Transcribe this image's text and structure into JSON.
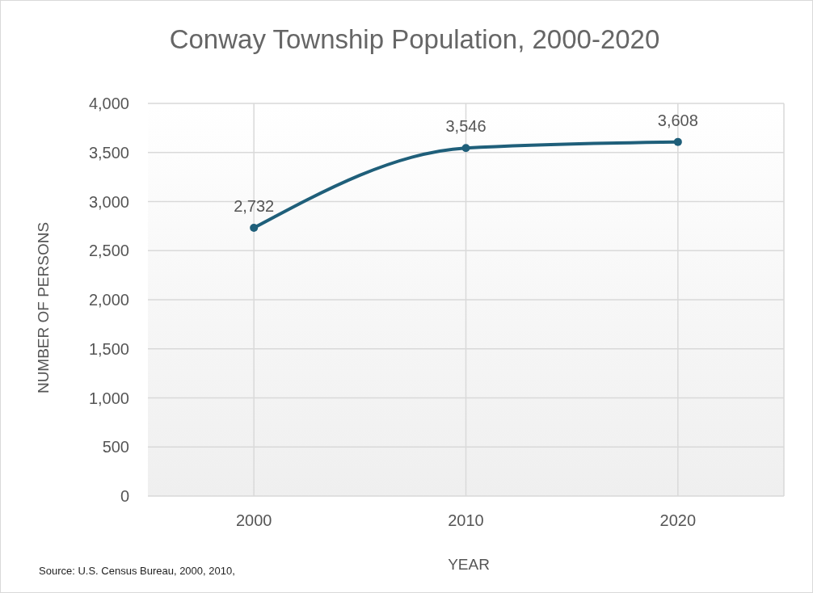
{
  "chart_data": {
    "type": "line",
    "title": "Conway Township Population, 2000-2020",
    "xlabel": "YEAR",
    "ylabel": "NUMBER OF PERSONS",
    "categories": [
      "2000",
      "2010",
      "2020"
    ],
    "series": [
      {
        "color": "#1f5f7a",
        "values": [
          2732,
          3546,
          3608
        ],
        "value_labels": [
          "2,732",
          "3,546",
          "3,608"
        ]
      }
    ],
    "ylim": [
      0,
      4000
    ],
    "yticks": [
      0,
      500,
      {
        "value": 1000,
        "label": "1,000"
      },
      {
        "value": 1500,
        "label": "1,500"
      },
      {
        "value": 2000,
        "label": "2,000"
      },
      {
        "value": 2500,
        "label": "2,500"
      },
      {
        "value": 3000,
        "label": "3,000"
      },
      {
        "value": 3500,
        "label": "3,500"
      },
      {
        "value": 4000,
        "label": "4,000"
      }
    ],
    "grid": true,
    "marker": "circle",
    "line_style": "solid",
    "annotations": [
      "Source: U.S. Census Bureau, 2000, 2010,"
    ]
  }
}
